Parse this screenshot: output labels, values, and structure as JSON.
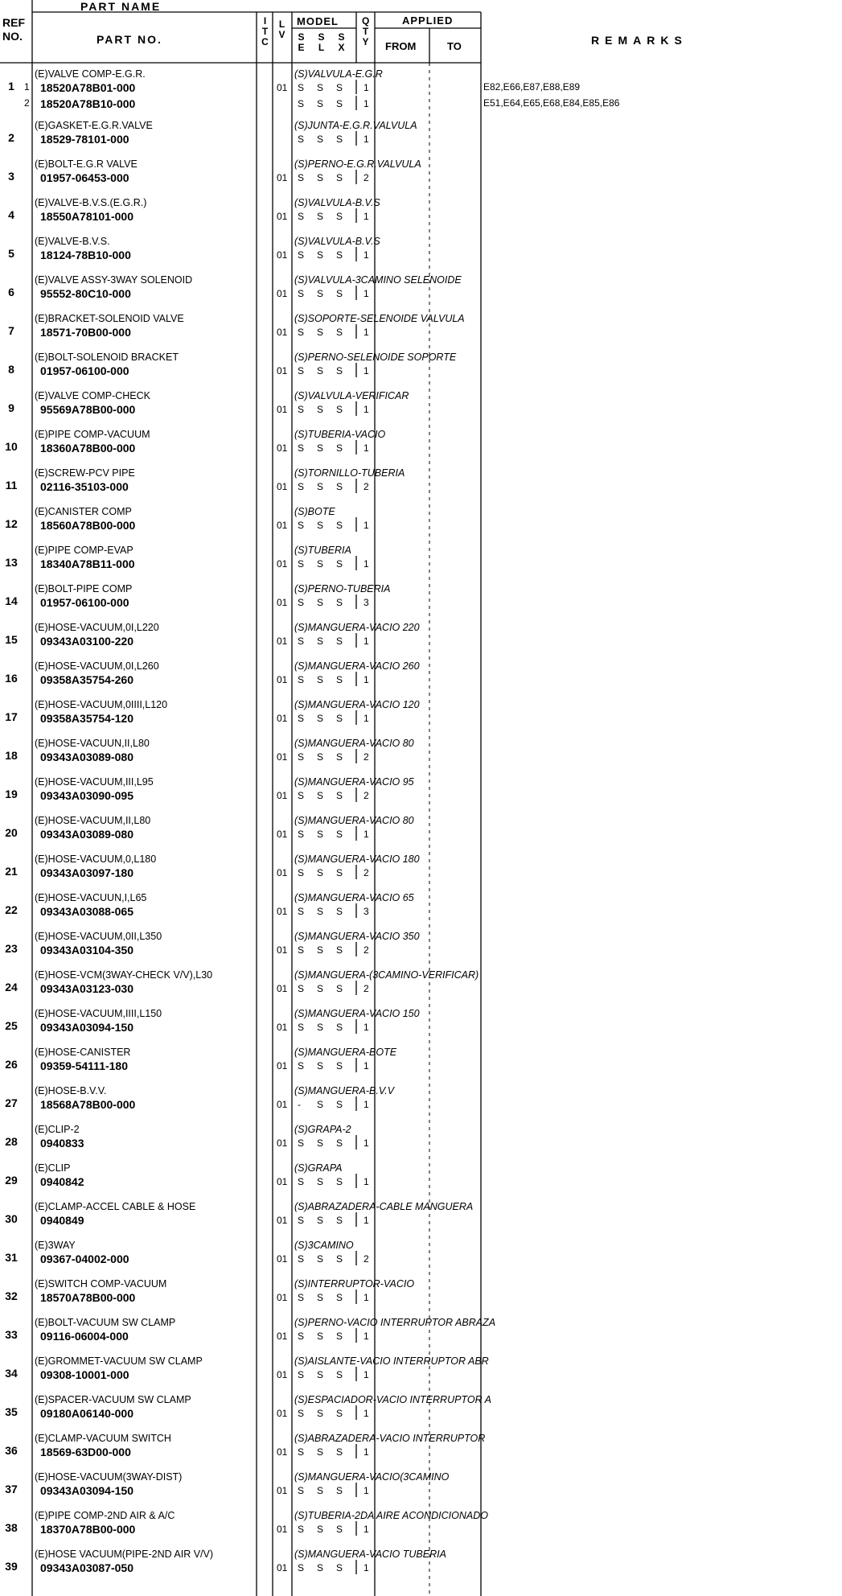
{
  "header": {
    "part_name": "PART NAME",
    "ref_no": "REF NO.",
    "part_no": "PART NO.",
    "itc": "ITC",
    "lv": "LV",
    "model": "MODEL",
    "model_cols": [
      "SE",
      "SL",
      "SX"
    ],
    "qty": "QTY",
    "applied": "APPLIED",
    "from": "FROM",
    "to": "TO",
    "remarks": "REMARKS"
  },
  "rows": [
    {
      "ref": 1,
      "name": "(E)VALVE COMP-E.G.R.",
      "name_es": "(S)VALVULA-E.G.R",
      "parts": [
        {
          "sub": 1,
          "part_no": "18520A78B01-000",
          "lv": "01",
          "model": [
            "S",
            "S",
            "S"
          ],
          "qty": 1,
          "remarks": "E82,E66,E87,E88,E89"
        },
        {
          "sub": 2,
          "part_no": "18520A78B10-000",
          "model": [
            "S",
            "S",
            "S"
          ],
          "qty": 1,
          "remarks": "E51,E64,E65,E68,E84,E85,E86"
        }
      ]
    },
    {
      "ref": 2,
      "name": "(E)GASKET-E.G.R.VALVE",
      "name_es": "(S)JUNTA-E.G.R.VALVULA",
      "parts": [
        {
          "part_no": "18529-78101-000",
          "model": [
            "S",
            "S",
            "S"
          ],
          "qty": 1
        }
      ]
    },
    {
      "ref": 3,
      "name": "(E)BOLT-E.G.R VALVE",
      "name_es": "(S)PERNO-E.G.R.VALVULA",
      "parts": [
        {
          "part_no": "01957-06453-000",
          "lv": "01",
          "model": [
            "S",
            "S",
            "S"
          ],
          "qty": 2
        }
      ]
    },
    {
      "ref": 4,
      "name": "(E)VALVE-B.V.S.(E.G.R.)",
      "name_es": "(S)VALVULA-B.V.S",
      "parts": [
        {
          "part_no": "18550A78101-000",
          "lv": "01",
          "model": [
            "S",
            "S",
            "S"
          ],
          "qty": 1
        }
      ]
    },
    {
      "ref": 5,
      "name": "(E)VALVE-B.V.S.",
      "name_es": "(S)VALVULA-B.V.S",
      "parts": [
        {
          "part_no": "18124-78B10-000",
          "lv": "01",
          "model": [
            "S",
            "S",
            "S"
          ],
          "qty": 1
        }
      ]
    },
    {
      "ref": 6,
      "name": "(E)VALVE ASSY-3WAY SOLENOID",
      "name_es": "(S)VALVULA-3CAMINO SELENOIDE",
      "parts": [
        {
          "part_no": "95552-80C10-000",
          "lv": "01",
          "model": [
            "S",
            "S",
            "S"
          ],
          "qty": 1
        }
      ]
    },
    {
      "ref": 7,
      "name": "(E)BRACKET-SOLENOID VALVE",
      "name_es": "(S)SOPORTE-SELENOIDE VALVULA",
      "parts": [
        {
          "part_no": "18571-70B00-000",
          "lv": "01",
          "model": [
            "S",
            "S",
            "S"
          ],
          "qty": 1
        }
      ]
    },
    {
      "ref": 8,
      "name": "(E)BOLT-SOLENOID BRACKET",
      "name_es": "(S)PERNO-SELENOIDE SOPORTE",
      "parts": [
        {
          "part_no": "01957-06100-000",
          "lv": "01",
          "model": [
            "S",
            "S",
            "S"
          ],
          "qty": 1
        }
      ]
    },
    {
      "ref": 9,
      "name": "(E)VALVE COMP-CHECK",
      "name_es": "(S)VALVULA-VERIFICAR",
      "parts": [
        {
          "part_no": "95569A78B00-000",
          "lv": "01",
          "model": [
            "S",
            "S",
            "S"
          ],
          "qty": 1
        }
      ]
    },
    {
      "ref": 10,
      "name": "(E)PIPE COMP-VACUUM",
      "name_es": "(S)TUBERIA-VACIO",
      "parts": [
        {
          "part_no": "18360A78B00-000",
          "lv": "01",
          "model": [
            "S",
            "S",
            "S"
          ],
          "qty": 1
        }
      ]
    },
    {
      "ref": 11,
      "name": "(E)SCREW-PCV PIPE",
      "name_es": "(S)TORNILLO-TUBERIA",
      "parts": [
        {
          "part_no": "02116-35103-000",
          "lv": "01",
          "model": [
            "S",
            "S",
            "S"
          ],
          "qty": 2
        }
      ]
    },
    {
      "ref": 12,
      "name": "(E)CANISTER COMP",
      "name_es": "(S)BOTE",
      "parts": [
        {
          "part_no": "18560A78B00-000",
          "lv": "01",
          "model": [
            "S",
            "S",
            "S"
          ],
          "qty": 1
        }
      ]
    },
    {
      "ref": 13,
      "name": "(E)PIPE COMP-EVAP",
      "name_es": "(S)TUBERIA",
      "parts": [
        {
          "part_no": "18340A78B11-000",
          "lv": "01",
          "model": [
            "S",
            "S",
            "S"
          ],
          "qty": 1
        }
      ]
    },
    {
      "ref": 14,
      "name": "(E)BOLT-PIPE COMP",
      "name_es": "(S)PERNO-TUBERIA",
      "parts": [
        {
          "part_no": "01957-06100-000",
          "lv": "01",
          "model": [
            "S",
            "S",
            "S"
          ],
          "qty": 3
        }
      ]
    },
    {
      "ref": 15,
      "name": "(E)HOSE-VACUUM,0I,L220",
      "name_es": "(S)MANGUERA-VACIO 220",
      "parts": [
        {
          "part_no": "09343A03100-220",
          "lv": "01",
          "model": [
            "S",
            "S",
            "S"
          ],
          "qty": 1
        }
      ]
    },
    {
      "ref": 16,
      "name": "(E)HOSE-VACUUM,0I,L260",
      "name_es": "(S)MANGUERA-VACIO 260",
      "parts": [
        {
          "part_no": "09358A35754-260",
          "lv": "01",
          "model": [
            "S",
            "S",
            "S"
          ],
          "qty": 1
        }
      ]
    },
    {
      "ref": 17,
      "name": "(E)HOSE-VACUUM,0IIII,L120",
      "name_es": "(S)MANGUERA-VACIO 120",
      "parts": [
        {
          "part_no": "09358A35754-120",
          "lv": "01",
          "model": [
            "S",
            "S",
            "S"
          ],
          "qty": 1
        }
      ]
    },
    {
      "ref": 18,
      "name": "(E)HOSE-VACUUN,II,L80",
      "name_es": "(S)MANGUERA-VACIO 80",
      "parts": [
        {
          "part_no": "09343A03089-080",
          "lv": "01",
          "model": [
            "S",
            "S",
            "S"
          ],
          "qty": 2
        }
      ]
    },
    {
      "ref": 19,
      "name": "(E)HOSE-VACUUM,III,L95",
      "name_es": "(S)MANGUERA-VACIO 95",
      "parts": [
        {
          "part_no": "09343A03090-095",
          "lv": "01",
          "model": [
            "S",
            "S",
            "S"
          ],
          "qty": 2
        }
      ]
    },
    {
      "ref": 20,
      "name": "(E)HOSE-VACUUM,II,L80",
      "name_es": "(S)MANGUERA-VACIO 80",
      "parts": [
        {
          "part_no": "09343A03089-080",
          "lv": "01",
          "model": [
            "S",
            "S",
            "S"
          ],
          "qty": 1
        }
      ]
    },
    {
      "ref": 21,
      "name": "(E)HOSE-VACUUM,0,L180",
      "name_es": "(S)MANGUERA-VACIO 180",
      "parts": [
        {
          "part_no": "09343A03097-180",
          "lv": "01",
          "model": [
            "S",
            "S",
            "S"
          ],
          "qty": 2
        }
      ]
    },
    {
      "ref": 22,
      "name": "(E)HOSE-VACUUN,I,L65",
      "name_es": "(S)MANGUERA-VACIO 65",
      "parts": [
        {
          "part_no": "09343A03088-065",
          "lv": "01",
          "model": [
            "S",
            "S",
            "S"
          ],
          "qty": 3
        }
      ]
    },
    {
      "ref": 23,
      "name": "(E)HOSE-VACUUM,0II,L350",
      "name_es": "(S)MANGUERA-VACIO 350",
      "parts": [
        {
          "part_no": "09343A03104-350",
          "lv": "01",
          "model": [
            "S",
            "S",
            "S"
          ],
          "qty": 2
        }
      ]
    },
    {
      "ref": 24,
      "name": "(E)HOSE-VCM(3WAY-CHECK V/V),L30",
      "name_es": "(S)MANGUERA-(3CAMINO-VERIFICAR)",
      "parts": [
        {
          "part_no": "09343A03123-030",
          "lv": "01",
          "model": [
            "S",
            "S",
            "S"
          ],
          "qty": 2
        }
      ]
    },
    {
      "ref": 25,
      "name": "(E)HOSE-VACUUM,IIII,L150",
      "name_es": "(S)MANGUERA-VACIO 150",
      "parts": [
        {
          "part_no": "09343A03094-150",
          "lv": "01",
          "model": [
            "S",
            "S",
            "S"
          ],
          "qty": 1
        }
      ]
    },
    {
      "ref": 26,
      "name": "(E)HOSE-CANISTER",
      "name_es": "(S)MANGUERA-BOTE",
      "parts": [
        {
          "part_no": "09359-54111-180",
          "lv": "01",
          "model": [
            "S",
            "S",
            "S"
          ],
          "qty": 1
        }
      ]
    },
    {
      "ref": 27,
      "name": "(E)HOSE-B.V.V.",
      "name_es": "(S)MANGUERA-B.V.V",
      "parts": [
        {
          "part_no": "18568A78B00-000",
          "lv": "01",
          "model": [
            "-",
            "S",
            "S"
          ],
          "qty": 1
        }
      ]
    },
    {
      "ref": 28,
      "name": "(E)CLIP-2",
      "name_es": "(S)GRAPA-2",
      "parts": [
        {
          "part_no": "0940833",
          "lv": "01",
          "model": [
            "S",
            "S",
            "S"
          ],
          "qty": 1
        }
      ]
    },
    {
      "ref": 29,
      "name": "(E)CLIP",
      "name_es": "(S)GRAPA",
      "parts": [
        {
          "part_no": "0940842",
          "lv": "01",
          "model": [
            "S",
            "S",
            "S"
          ],
          "qty": 1
        }
      ]
    },
    {
      "ref": 30,
      "name": "(E)CLAMP-ACCEL CABLE & HOSE",
      "name_es": "(S)ABRAZADERA-CABLE MANGUERA",
      "parts": [
        {
          "part_no": "0940849",
          "lv": "01",
          "model": [
            "S",
            "S",
            "S"
          ],
          "qty": 1
        }
      ]
    },
    {
      "ref": 31,
      "name": "(E)3WAY",
      "name_es": "(S)3CAMINO",
      "parts": [
        {
          "part_no": "09367-04002-000",
          "lv": "01",
          "model": [
            "S",
            "S",
            "S"
          ],
          "qty": 2
        }
      ]
    },
    {
      "ref": 32,
      "name": "(E)SWITCH COMP-VACUUM",
      "name_es": "(S)INTERRUPTOR-VACIO",
      "parts": [
        {
          "part_no": "18570A78B00-000",
          "lv": "01",
          "model": [
            "S",
            "S",
            "S"
          ],
          "qty": 1
        }
      ]
    },
    {
      "ref": 33,
      "name": "(E)BOLT-VACUUM SW CLAMP",
      "name_es": "(S)PERNO-VACIO INTERRUPTOR ABRAZA",
      "parts": [
        {
          "part_no": "09116-06004-000",
          "lv": "01",
          "model": [
            "S",
            "S",
            "S"
          ],
          "qty": 1
        }
      ]
    },
    {
      "ref": 34,
      "name": "(E)GROMMET-VACUUM SW CLAMP",
      "name_es": "(S)AISLANTE-VACIO INTERRUPTOR ABR",
      "parts": [
        {
          "part_no": "09308-10001-000",
          "lv": "01",
          "model": [
            "S",
            "S",
            "S"
          ],
          "qty": 1
        }
      ]
    },
    {
      "ref": 35,
      "name": "(E)SPACER-VACUUM SW CLAMP",
      "name_es": "(S)ESPACIADOR-VACIO INTERRUPTOR A",
      "parts": [
        {
          "part_no": "09180A06140-000",
          "lv": "01",
          "model": [
            "S",
            "S",
            "S"
          ],
          "qty": 1
        }
      ]
    },
    {
      "ref": 36,
      "name": "(E)CLAMP-VACUUM SWITCH",
      "name_es": "(S)ABRAZADERA-VACIO INTERRUPTOR",
      "parts": [
        {
          "part_no": "18569-63D00-000",
          "lv": "01",
          "model": [
            "S",
            "S",
            "S"
          ],
          "qty": 1
        }
      ]
    },
    {
      "ref": 37,
      "name": "(E)HOSE-VACUUM(3WAY-DIST)",
      "name_es": "(S)MANGUERA-VACIO(3CAMINO",
      "parts": [
        {
          "part_no": "09343A03094-150",
          "lv": "01",
          "model": [
            "S",
            "S",
            "S"
          ],
          "qty": 1
        }
      ]
    },
    {
      "ref": 38,
      "name": "(E)PIPE COMP-2ND AIR & A/C",
      "name_es": "(S)TUBERIA-2DA AIRE ACONDICIONADO",
      "parts": [
        {
          "part_no": "18370A78B00-000",
          "lv": "01",
          "model": [
            "S",
            "S",
            "S"
          ],
          "qty": 1
        }
      ]
    },
    {
      "ref": 39,
      "name": "(E)HOSE VACUUM(PIPE-2ND AIR V/V)",
      "name_es": "(S)MANGUERA-VACIO TUBERIA",
      "parts": [
        {
          "part_no": "09343A03087-050",
          "lv": "01",
          "model": [
            "S",
            "S",
            "S"
          ],
          "qty": 1
        }
      ]
    }
  ]
}
